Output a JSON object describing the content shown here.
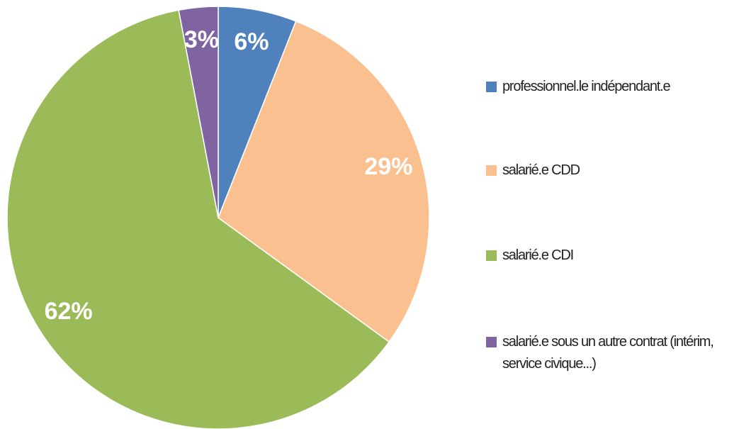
{
  "chart_data": {
    "type": "pie",
    "categories": [
      "professionnel.le indépendant.e",
      "salarié.e CDD",
      "salarié.e CDI",
      "salarié.e sous un autre contrat (intérim, service civique...)"
    ],
    "values": [
      6,
      29,
      62,
      3
    ],
    "value_labels": [
      "6%",
      "29%",
      "62%",
      "3%"
    ],
    "colors": [
      "#4f81bd",
      "#fac090",
      "#9bbb59",
      "#8064a2"
    ],
    "legend": "right"
  }
}
